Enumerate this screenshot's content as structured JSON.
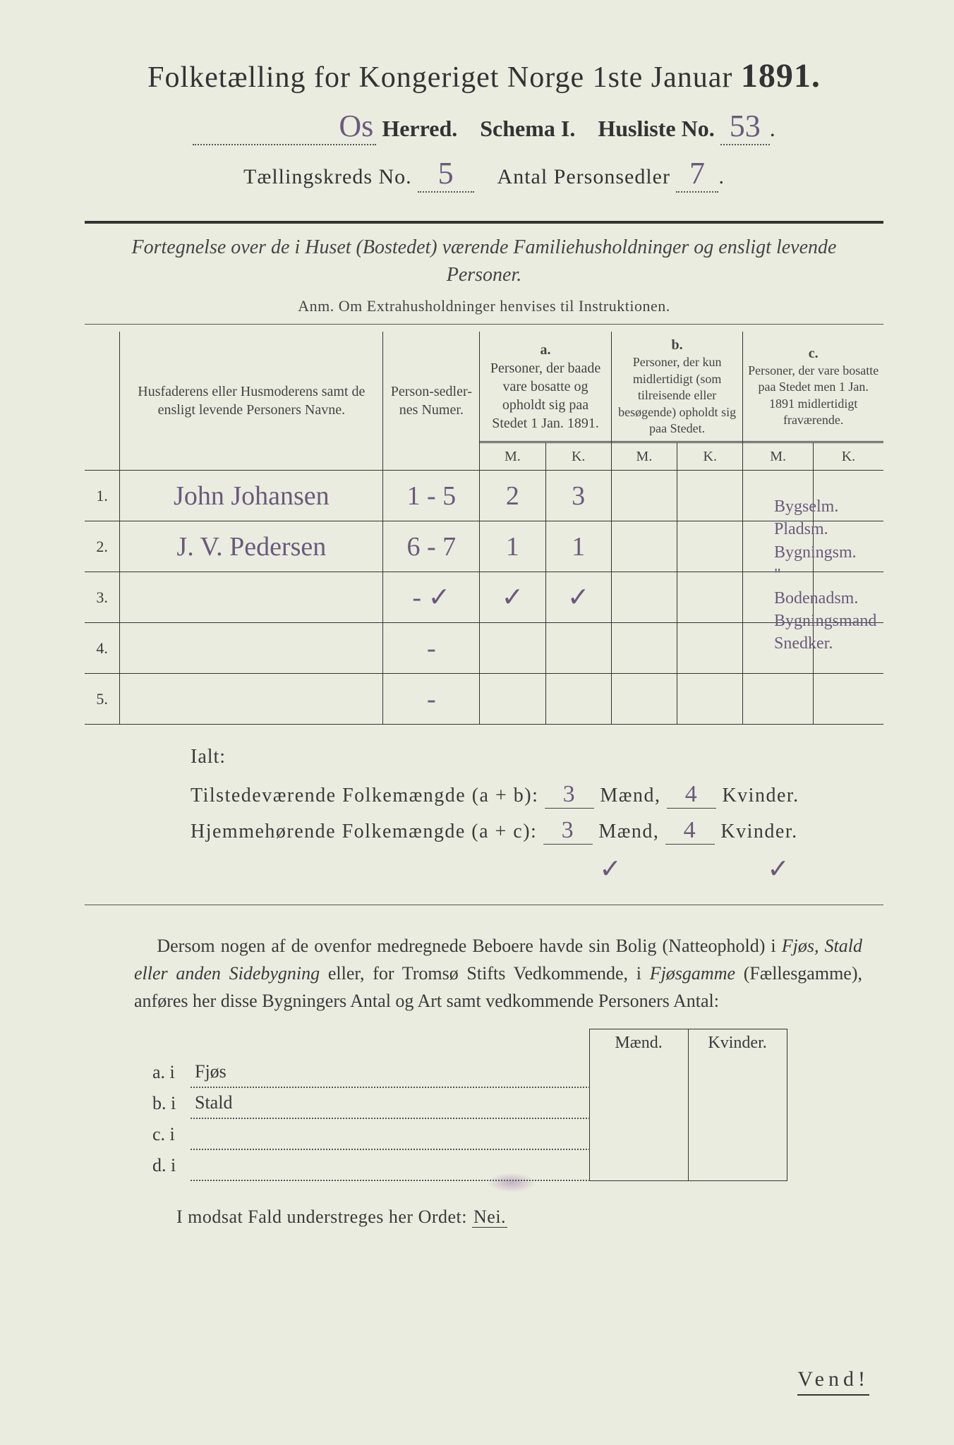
{
  "colors": {
    "paper": "#eaece0",
    "print": "#3a3a3a",
    "handwriting": "#6b5a7a"
  },
  "title": {
    "main": "Folketælling for Kongeriget Norge 1ste Januar",
    "year": "1891."
  },
  "header": {
    "herred_hand": "Os",
    "herred_label": "Herred.",
    "schema": "Schema I.",
    "husliste_label": "Husliste No.",
    "husliste_hand": "53",
    "kreds_label": "Tællingskreds No.",
    "kreds_hand": "5",
    "antal_label": "Antal Personsedler",
    "antal_hand": "7"
  },
  "subtitle": "Fortegnelse over de i Huset (Bostedet) værende Familiehusholdninger og ensligt levende Personer.",
  "anm": "Anm.  Om Extrahusholdninger henvises til Instruktionen.",
  "table": {
    "headers": {
      "name": "Husfaderens eller Husmoderens samt de ensligt levende Personers Navne.",
      "pn": "Person-sedler-nes Numer.",
      "a_label": "a.",
      "a": "Personer, der baade vare bosatte og opholdt sig paa Stedet 1 Jan. 1891.",
      "b_label": "b.",
      "b": "Personer, der kun midlertidigt (som tilreisende eller besøgende) opholdt sig paa Stedet.",
      "c_label": "c.",
      "c": "Personer, der vare bosatte paa Stedet men 1 Jan. 1891 midlertidigt fraværende.",
      "M": "M.",
      "K": "K."
    },
    "rows": [
      {
        "n": "1.",
        "name": "John Johansen",
        "pn": "1 - 5",
        "aM": "2",
        "aK": "3",
        "bM": "",
        "bK": "",
        "cM": "",
        "cK": ""
      },
      {
        "n": "2.",
        "name": "J. V. Pedersen",
        "pn": "6 - 7",
        "aM": "1",
        "aK": "1",
        "bM": "",
        "bK": "",
        "cM": "",
        "cK": ""
      },
      {
        "n": "3.",
        "name": "",
        "pn": "- ✓",
        "aM": "✓",
        "aK": "✓",
        "bM": "",
        "bK": "",
        "cM": "",
        "cK": ""
      },
      {
        "n": "4.",
        "name": "",
        "pn": "-",
        "aM": "",
        "aK": "",
        "bM": "",
        "bK": "",
        "cM": "",
        "cK": ""
      },
      {
        "n": "5.",
        "name": "",
        "pn": "-",
        "aM": "",
        "aK": "",
        "bM": "",
        "bK": "",
        "cM": "",
        "cK": ""
      }
    ]
  },
  "side_notes": [
    "Bygselm.",
    "Pladsm.",
    "Bygningsm.",
    "\"",
    "Bodenadsm.",
    "Bygningsmand",
    "Snedker."
  ],
  "ialt": {
    "label": "Ialt:",
    "line1_pre": "Tilstedeværende Folkemængde (a + b):",
    "line2_pre": "Hjemmehørende Folkemængde (a + c):",
    "maend": "Mænd,",
    "kvinder": "Kvinder.",
    "m1": "3",
    "k1": "4",
    "m2": "3",
    "k2": "4",
    "check_m": "✓",
    "check_k": "✓"
  },
  "para": {
    "t1": "Dersom nogen af de ovenfor medregnede Beboere havde sin Bolig (Natteophold) i ",
    "i1": "Fjøs, Stald eller anden Sidebygning",
    "t2": " eller, for Tromsø Stifts Vedkommende, i ",
    "i2": "Fjøsgamme",
    "t3": " (Fællesgamme), anføres her disse Bygningers Antal og Art samt vedkommende Personers Antal:"
  },
  "small": {
    "maend": "Mænd.",
    "kvinder": "Kvinder.",
    "rows": [
      {
        "l": "a.  i",
        "label": "Fjøs"
      },
      {
        "l": "b.  i",
        "label": "Stald"
      },
      {
        "l": "c.  i",
        "label": ""
      },
      {
        "l": "d.  i",
        "label": ""
      }
    ]
  },
  "modsat": {
    "pre": "I modsat Fald understreges her Ordet: ",
    "nei": "Nei.",
    "post": ""
  },
  "vend": "Vend!"
}
